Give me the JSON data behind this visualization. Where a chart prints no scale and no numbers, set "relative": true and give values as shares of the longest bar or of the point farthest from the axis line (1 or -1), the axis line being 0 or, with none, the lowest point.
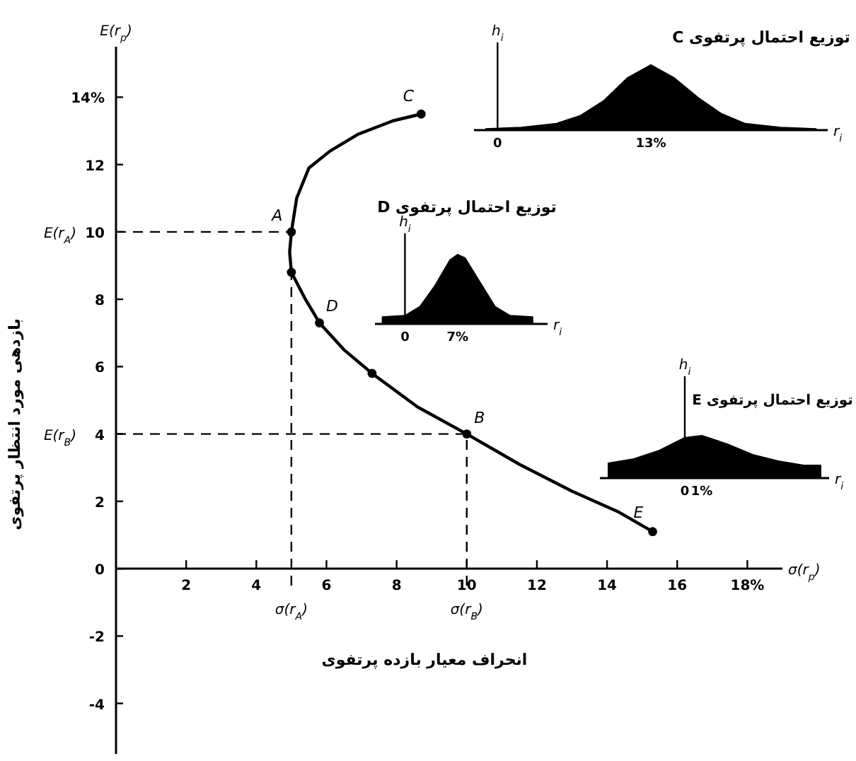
{
  "chart_data": [
    {
      "type": "line",
      "xlabel": "انحراف معیار بازده پرتفوی",
      "ylabel": "بازدهی مورد انتظار پرتفوی",
      "xlim": [
        0,
        19
      ],
      "ylim": [
        -5.5,
        15.5
      ],
      "xticks": [
        2,
        4,
        6,
        8,
        10,
        12,
        14,
        16,
        {
          "value": 18,
          "label": "18%"
        }
      ],
      "yticks": [
        {
          "value": 14,
          "label": "14%"
        },
        12,
        10,
        8,
        6,
        4,
        2,
        0,
        -2,
        -4
      ],
      "series": [
        {
          "type": "line",
          "color": "#000000",
          "x": [
            8.7,
            7.9,
            6.9,
            6.1,
            5.5,
            5.15,
            5,
            4.95,
            5,
            5.4,
            5.8,
            6.5,
            7.3,
            8.6,
            10,
            11.5,
            13,
            14.3,
            15.3
          ],
          "values": [
            13.5,
            13.3,
            12.9,
            12.4,
            11.9,
            11,
            10,
            9.4,
            8.8,
            8,
            7.3,
            6.5,
            5.8,
            4.8,
            4,
            3.1,
            2.3,
            1.7,
            1.1
          ]
        },
        {
          "type": "scatter",
          "color": "#000000",
          "marker": "circle",
          "x": [
            8.7,
            5,
            5,
            5.8,
            7.3,
            10,
            15.3
          ],
          "values": [
            13.5,
            10,
            8.8,
            7.3,
            5.8,
            4,
            1.1
          ]
        }
      ],
      "ref_lines": [
        {
          "axis": "y",
          "value": 10,
          "label": "E(r$_{A}$)",
          "line_style": "dashed"
        },
        {
          "axis": "x",
          "value": 5,
          "label": "σ(r$_{A}$)",
          "line_style": "dashed"
        },
        {
          "axis": "y",
          "value": 4,
          "label": "E(r$_{B}$)",
          "line_style": "dashed"
        },
        {
          "axis": "x",
          "value": 10,
          "label": "σ(r$_{B}$)",
          "line_style": "dashed"
        }
      ],
      "annotations": [
        "E(r$_{p}$)",
        "σ(r$_{p}$)",
        {
          "text": "A",
          "x": 5,
          "y": 10
        },
        {
          "text": "C",
          "x": 8.7,
          "y": 13.5
        },
        {
          "text": "D",
          "x": 5.8,
          "y": 7.3
        },
        {
          "text": "B",
          "x": 10,
          "y": 4
        },
        {
          "text": "E",
          "x": 15.3,
          "y": 1.1
        }
      ]
    },
    {
      "type": "area",
      "relative": true,
      "tick_labels": "x",
      "title": "توزیع احتمال پرتفوی C",
      "xlabel": "r$_{i}$",
      "ylabel": "h$_{i}$",
      "xlim": [
        -2,
        28
      ],
      "xticks": [
        0,
        {
          "value": 13,
          "label": "13%"
        }
      ],
      "series": [
        {
          "color": "#000000",
          "x": [
            -1,
            2,
            5,
            7,
            9,
            11,
            13,
            15,
            17,
            19,
            21,
            24,
            27
          ],
          "values": [
            0.02,
            0.04,
            0.1,
            0.22,
            0.45,
            0.8,
            1,
            0.8,
            0.5,
            0.25,
            0.1,
            0.04,
            0.02
          ]
        }
      ]
    },
    {
      "type": "area",
      "relative": true,
      "tick_labels": "x",
      "title": "توزیع احتمال پرتفوی D",
      "xlabel": "r$_{i}$",
      "ylabel": "h$_{i}$",
      "xlim": [
        -4,
        19
      ],
      "xticks": [
        0,
        {
          "value": 7,
          "label": "7%"
        }
      ],
      "series": [
        {
          "color": "#000000",
          "x": [
            -3,
            0,
            2,
            4,
            6,
            7,
            8,
            10,
            12,
            14,
            17
          ],
          "values": [
            0.1,
            0.12,
            0.25,
            0.55,
            0.92,
            1,
            0.95,
            0.6,
            0.25,
            0.12,
            0.1
          ]
        }
      ]
    },
    {
      "type": "area",
      "relative": true,
      "tick_labels": "x",
      "title": "توزیع احتمال پرتفوی E",
      "xlabel": "r$_{i}$",
      "ylabel": "h$_{i}$",
      "xlim": [
        -5,
        8.5
      ],
      "xticks": [
        0,
        {
          "value": 1,
          "label": "1%"
        }
      ],
      "series": [
        {
          "color": "#000000",
          "x": [
            -4.5,
            -3,
            -1.5,
            0,
            1,
            2.5,
            4,
            5.5,
            7,
            8
          ],
          "values": [
            0.35,
            0.45,
            0.65,
            0.95,
            1,
            0.8,
            0.55,
            0.4,
            0.3,
            0.3
          ]
        }
      ]
    }
  ]
}
